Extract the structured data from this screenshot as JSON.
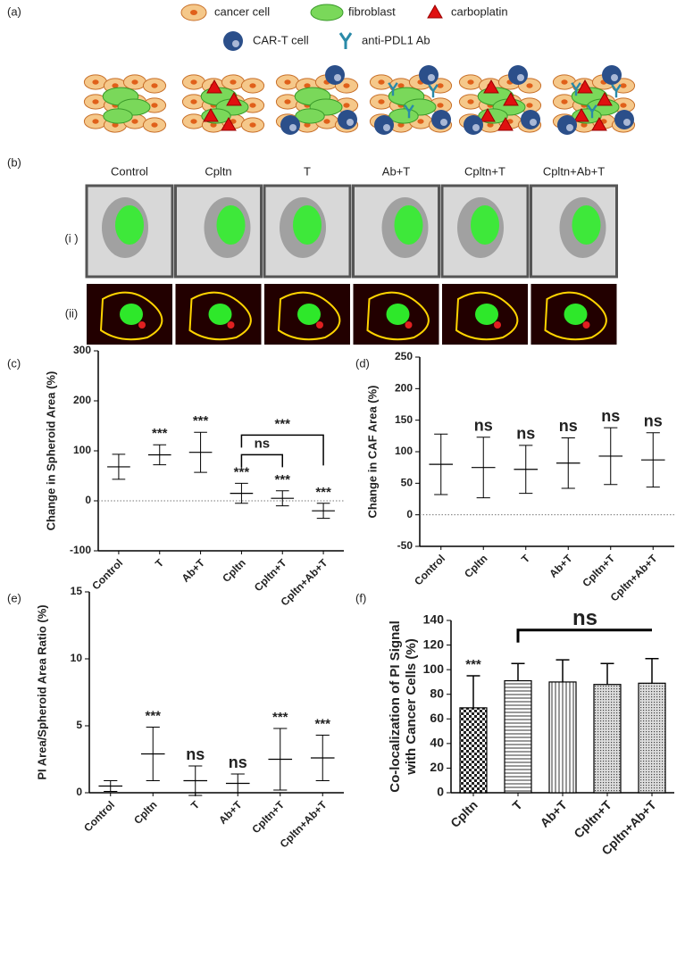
{
  "panel_a": {
    "label": "(a)",
    "legend": [
      "cancer cell",
      "fibroblast",
      "carboplatin",
      "CAR-T cell",
      "anti-PDL1 Ab"
    ]
  },
  "panel_b": {
    "label": "(b)",
    "columns": [
      "Control",
      "Cpltn",
      "T",
      "Ab+T",
      "Cpltn+T",
      "Cpltn+Ab+T"
    ],
    "rows": [
      "(i )",
      "(ii)"
    ]
  },
  "chart_data": [
    {
      "panel": "(c)",
      "type": "dot",
      "ylabel": [
        "Change in Spheroid  Area (%)"
      ],
      "categories": [
        "Control",
        "T",
        "Ab+T",
        "Cpltn",
        "Cpltn+T",
        "Cpltn+Ab+T"
      ],
      "means": [
        68,
        92,
        97,
        15,
        5,
        -20
      ],
      "sds": [
        25,
        20,
        40,
        20,
        15,
        15
      ],
      "ylim": [
        -100,
        300
      ],
      "yticks": [
        -100,
        0,
        100,
        200,
        300
      ],
      "zero_line": true,
      "color": "#000000",
      "significance": [
        null,
        "***",
        "***",
        "***",
        "***",
        "***"
      ],
      "brackets": [
        {
          "categories": [
            "Cpltn",
            "Cpltn+T"
          ],
          "label": "ns"
        },
        {
          "categories": [
            "Cpltn",
            "Cpltn+Ab+T"
          ],
          "label": "***"
        }
      ]
    },
    {
      "panel": "(d)",
      "type": "dot",
      "ylabel": [
        "Change in CAF Area (%)"
      ],
      "categories": [
        "Control",
        "Cpltn",
        "T",
        "Ab+T",
        "Cpltn+T",
        "Cpltn+Ab+T"
      ],
      "means": [
        80,
        75,
        72,
        82,
        93,
        87
      ],
      "sds": [
        48,
        48,
        38,
        40,
        45,
        43
      ],
      "ylim": [
        -50,
        250
      ],
      "yticks": [
        -50,
        0,
        50,
        100,
        150,
        200,
        250
      ],
      "zero_line": true,
      "color": "#000000",
      "significance": [
        null,
        "ns",
        "ns",
        "ns",
        "ns",
        "ns"
      ],
      "brackets": []
    },
    {
      "panel": "(e)",
      "type": "dot",
      "ylabel": [
        "PI Area/Spheroid Area Ratio (%)"
      ],
      "categories": [
        "Control",
        "Cpltn",
        "T",
        "Ab+T",
        "Cpltn+T",
        "Cpltn+Ab+T"
      ],
      "means": [
        0.5,
        2.9,
        0.9,
        0.7,
        2.5,
        2.6
      ],
      "sds": [
        0.4,
        2,
        1.1,
        0.7,
        2.3,
        1.7
      ],
      "ylim": [
        0,
        15
      ],
      "yticks": [
        0,
        5,
        10,
        15
      ],
      "zero_line": false,
      "color": "#000000",
      "significance": [
        null,
        "***",
        "ns",
        "ns",
        "***",
        "***"
      ],
      "brackets": []
    },
    {
      "panel": "(f)",
      "type": "bar",
      "ylabel": [
        "Co-localization of PI Signal",
        "with Cancer Cells (%)"
      ],
      "categories": [
        "Cpltn",
        "T",
        "Ab+T",
        "Cpltn+T",
        "Cpltn+Ab+T"
      ],
      "means": [
        69,
        91,
        90,
        88,
        89
      ],
      "sds": [
        26,
        14,
        18,
        17,
        20
      ],
      "ylim": [
        0,
        140
      ],
      "yticks": [
        0,
        20,
        40,
        60,
        80,
        100,
        120,
        140
      ],
      "zero_line": false,
      "color": "#000000",
      "patterns": [
        "checker",
        "hlines",
        "vlines",
        "dots",
        "dots"
      ],
      "significance": [
        "***",
        null,
        null,
        null,
        null
      ],
      "brackets": [
        {
          "categories": [
            "T",
            "Cpltn+Ab+T"
          ],
          "label": "ns"
        }
      ]
    }
  ]
}
